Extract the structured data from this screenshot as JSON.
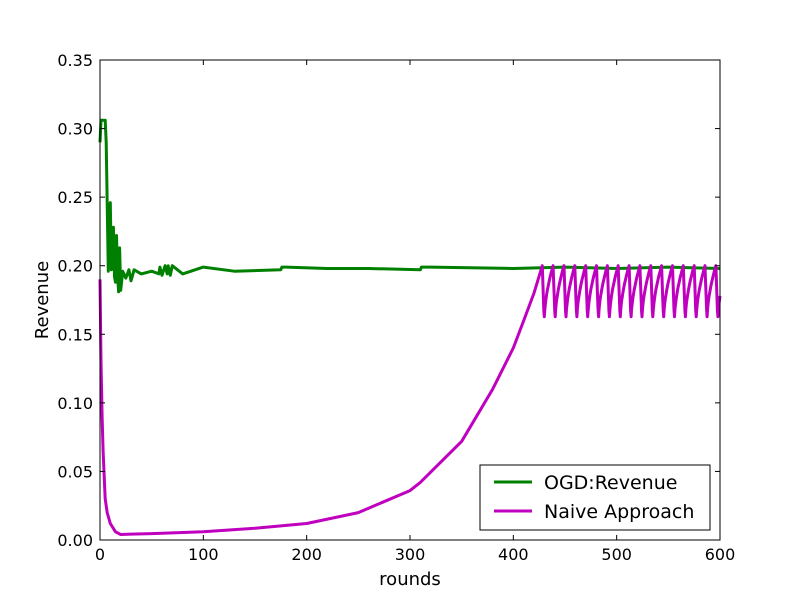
{
  "chart_data": {
    "type": "line",
    "title": "",
    "xlabel": "rounds",
    "ylabel": "Revenue",
    "xlim": [
      0,
      600
    ],
    "ylim": [
      0,
      0.35
    ],
    "xticks": [
      0,
      100,
      200,
      300,
      400,
      500,
      600
    ],
    "xtick_labels": [
      "0",
      "100",
      "200",
      "300",
      "400",
      "500",
      "600"
    ],
    "yticks": [
      0,
      0.05,
      0.1,
      0.15,
      0.2,
      0.25,
      0.3,
      0.35
    ],
    "ytick_labels": [
      "0.00",
      "0.05",
      "0.10",
      "0.15",
      "0.20",
      "0.25",
      "0.30",
      "0.35"
    ],
    "grid": false,
    "legend_position": "lower-right",
    "series": [
      {
        "name": "OGD:Revenue",
        "color": "#008000",
        "x": [
          0,
          1,
          5,
          6,
          8,
          9,
          10,
          11,
          12,
          13,
          14,
          15,
          16,
          17,
          18,
          19,
          20,
          22,
          25,
          28,
          30,
          33,
          40,
          50,
          57,
          58,
          60,
          63,
          65,
          66,
          68,
          70,
          80,
          100,
          130,
          175,
          176,
          180,
          220,
          260,
          310,
          311,
          320,
          400,
          450,
          500,
          550,
          600
        ],
        "y": [
          0.29,
          0.306,
          0.306,
          0.29,
          0.196,
          0.24,
          0.246,
          0.197,
          0.2,
          0.228,
          0.192,
          0.188,
          0.222,
          0.193,
          0.181,
          0.213,
          0.182,
          0.196,
          0.191,
          0.197,
          0.189,
          0.197,
          0.194,
          0.196,
          0.194,
          0.199,
          0.193,
          0.2,
          0.194,
          0.2,
          0.193,
          0.2,
          0.194,
          0.199,
          0.196,
          0.197,
          0.199,
          0.199,
          0.198,
          0.198,
          0.197,
          0.199,
          0.199,
          0.198,
          0.199,
          0.198,
          0.199,
          0.198
        ]
      },
      {
        "name": "Naive Approach",
        "color": "#BF00BF",
        "x": [
          0,
          1,
          2,
          3,
          4,
          5,
          7,
          10,
          15,
          20,
          30,
          50,
          100,
          150,
          200,
          250,
          300,
          310,
          350,
          380,
          400,
          410,
          420,
          428
        ],
        "y": [
          0.19,
          0.13,
          0.09,
          0.065,
          0.048,
          0.03,
          0.02,
          0.012,
          0.006,
          0.004,
          0.0043,
          0.0047,
          0.006,
          0.0085,
          0.012,
          0.02,
          0.036,
          0.042,
          0.072,
          0.11,
          0.14,
          0.16,
          0.18,
          0.2
        ],
        "oscillation": {
          "x_start": 428,
          "x_end": 600,
          "period": 10.5,
          "min": 0.159,
          "max": 0.2
        }
      }
    ]
  }
}
